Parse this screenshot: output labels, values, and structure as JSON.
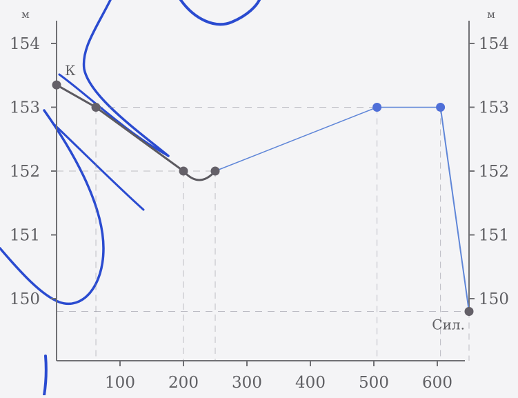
{
  "chart_data": {
    "type": "line",
    "y_unit": "м",
    "xlim": [
      0,
      650
    ],
    "ylim": [
      149,
      154.5
    ],
    "x_ticks": [
      "100",
      "200",
      "300",
      "400",
      "500",
      "600"
    ],
    "x_tick_values": [
      100,
      200,
      300,
      400,
      500,
      600
    ],
    "y_ticks_left": [
      "150",
      "151",
      "152",
      "153",
      "154"
    ],
    "y_ticks_right": [
      "150",
      "151",
      "152",
      "153",
      "154"
    ],
    "y_tick_values": [
      150,
      151,
      152,
      153,
      154
    ],
    "grid": "dashed guide lines at each plotted point",
    "series": [
      {
        "points": [
          {
            "x": 0,
            "y": 153.35
          },
          {
            "x": 62,
            "y": 153.0
          },
          {
            "x": 200,
            "y": 152.0
          },
          {
            "x": 250,
            "y": 152.0
          },
          {
            "x": 505,
            "y": 153.0
          },
          {
            "x": 605,
            "y": 153.0
          },
          {
            "x": 650,
            "y": 149.8
          }
        ]
      }
    ],
    "annotations": [
      {
        "text": "К",
        "x": 0,
        "y": 153.35
      },
      {
        "text": "Сил.",
        "x": 650,
        "y": 149.8
      }
    ],
    "colors": {
      "axis": "#707074",
      "guide": "#8e8e9a",
      "point": "#646068",
      "segment_dark": "#5c5a60",
      "segment_blue": "#5f86d8",
      "ink": "#1f3fbf"
    }
  }
}
